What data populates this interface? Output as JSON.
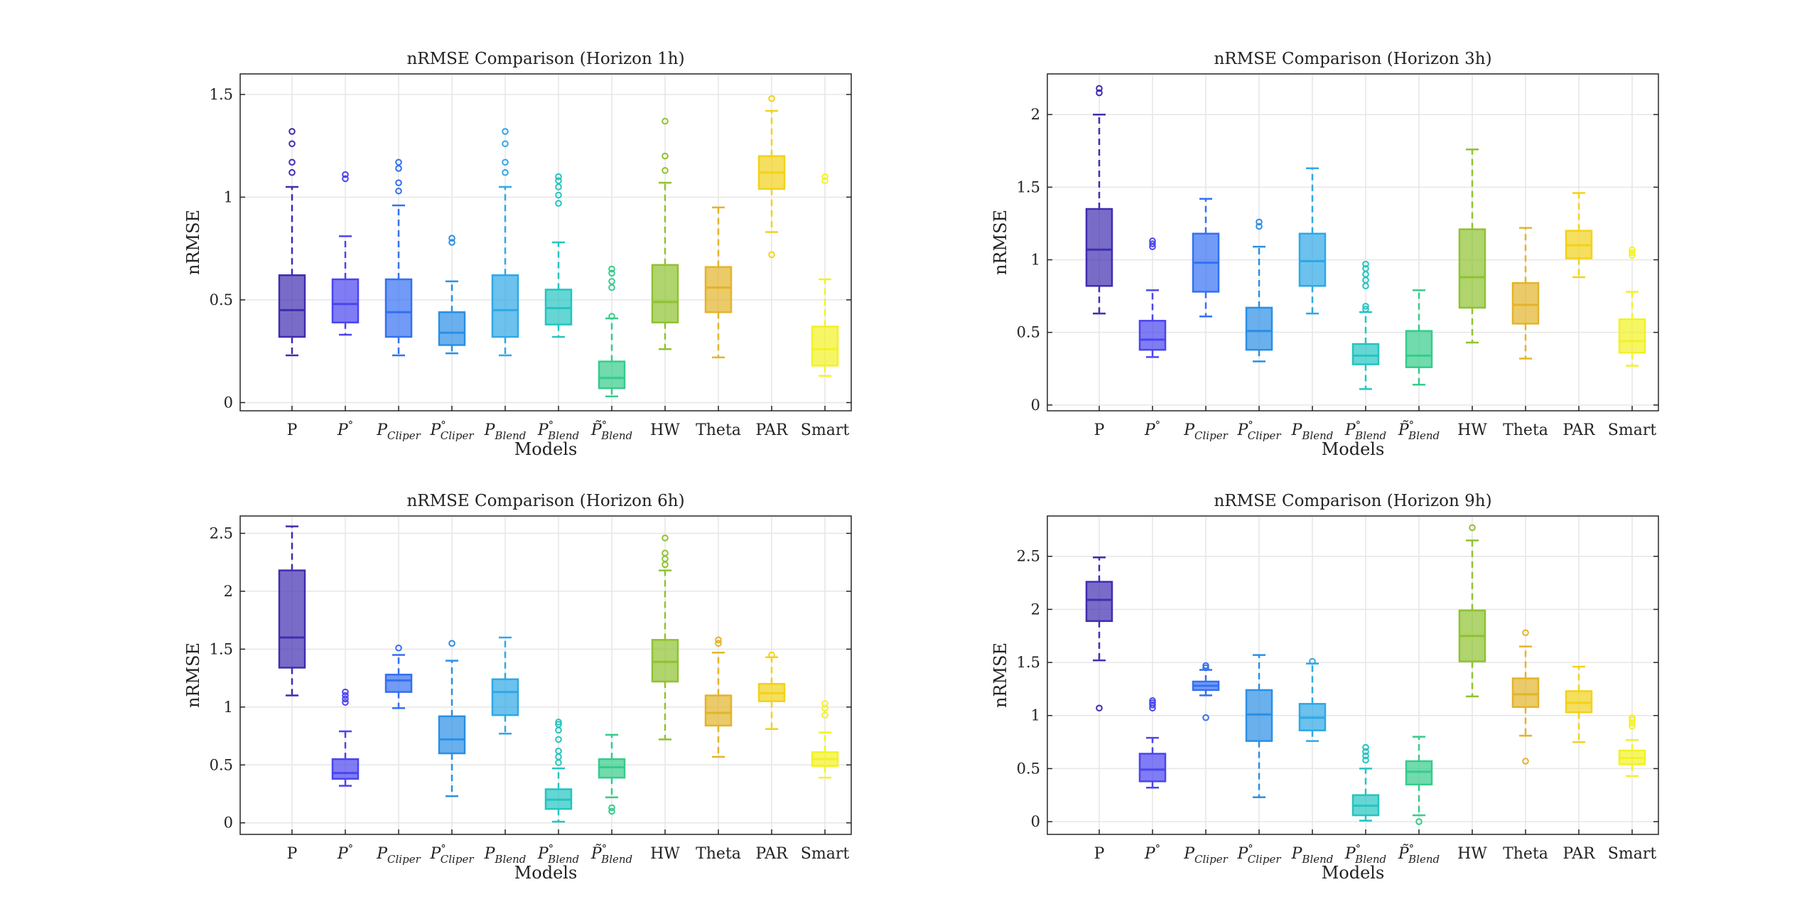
{
  "figure": {
    "categories": [
      "P",
      "P°",
      "P_Cliper",
      "P°_Cliper",
      "P_Blend",
      "P°_Blend",
      "P̃°_Blend",
      "HW",
      "Theta",
      "PAR",
      "Smart"
    ],
    "colors": [
      "#3f2db0",
      "#4a45f0",
      "#3470f2",
      "#2a8fe6",
      "#2ea8e6",
      "#24c4c0",
      "#35cc8a",
      "#8fc230",
      "#e3b42a",
      "#f2d21a",
      "#f2f224"
    ]
  },
  "chart_data": [
    {
      "type": "box",
      "title": "nRMSE Comparison (Horizon 1h)",
      "xlabel": "Models",
      "ylabel": "nRMSE",
      "ylim": [
        -0.04,
        1.6
      ],
      "yticks": [
        0,
        0.5,
        1,
        1.5
      ],
      "ytick_labels": [
        "0",
        "0.5",
        "1",
        "1.5"
      ],
      "grid": true,
      "boxes": [
        {
          "category": "P",
          "whisker_low": 0.23,
          "q1": 0.32,
          "median": 0.45,
          "q3": 0.62,
          "whisker_high": 1.05,
          "outliers": [
            1.12,
            1.17,
            1.26,
            1.32
          ]
        },
        {
          "category": "P°",
          "whisker_low": 0.33,
          "q1": 0.39,
          "median": 0.48,
          "q3": 0.6,
          "whisker_high": 0.81,
          "outliers": [
            1.09,
            1.11
          ]
        },
        {
          "category": "P_Cliper",
          "whisker_low": 0.23,
          "q1": 0.32,
          "median": 0.44,
          "q3": 0.6,
          "whisker_high": 0.96,
          "outliers": [
            1.03,
            1.07,
            1.14,
            1.17
          ]
        },
        {
          "category": "P°_Cliper",
          "whisker_low": 0.24,
          "q1": 0.28,
          "median": 0.34,
          "q3": 0.44,
          "whisker_high": 0.59,
          "outliers": [
            0.78,
            0.8
          ]
        },
        {
          "category": "P_Blend",
          "whisker_low": 0.23,
          "q1": 0.32,
          "median": 0.45,
          "q3": 0.62,
          "whisker_high": 1.05,
          "outliers": [
            1.12,
            1.17,
            1.26,
            1.32
          ]
        },
        {
          "category": "P°_Blend",
          "whisker_low": 0.32,
          "q1": 0.38,
          "median": 0.46,
          "q3": 0.55,
          "whisker_high": 0.78,
          "outliers": [
            0.97,
            1.01,
            1.05,
            1.08,
            1.1
          ]
        },
        {
          "category": "P̃°_Blend",
          "whisker_low": 0.03,
          "q1": 0.07,
          "median": 0.12,
          "q3": 0.2,
          "whisker_high": 0.41,
          "outliers": [
            0.42,
            0.56,
            0.59,
            0.63,
            0.65
          ]
        },
        {
          "category": "HW",
          "whisker_low": 0.26,
          "q1": 0.39,
          "median": 0.49,
          "q3": 0.67,
          "whisker_high": 1.07,
          "outliers": [
            1.13,
            1.2,
            1.37
          ]
        },
        {
          "category": "Theta",
          "whisker_low": 0.22,
          "q1": 0.44,
          "median": 0.56,
          "q3": 0.66,
          "whisker_high": 0.95,
          "outliers": []
        },
        {
          "category": "PAR",
          "whisker_low": 0.83,
          "q1": 1.04,
          "median": 1.12,
          "q3": 1.2,
          "whisker_high": 1.42,
          "outliers": [
            0.72,
            1.48
          ]
        },
        {
          "category": "Smart",
          "whisker_low": 0.13,
          "q1": 0.18,
          "median": 0.26,
          "q3": 0.37,
          "whisker_high": 0.6,
          "outliers": [
            1.08,
            1.1
          ]
        }
      ]
    },
    {
      "type": "box",
      "title": "nRMSE Comparison (Horizon 3h)",
      "xlabel": "Models",
      "ylabel": "nRMSE",
      "ylim": [
        -0.04,
        2.28
      ],
      "yticks": [
        0,
        0.5,
        1,
        1.5,
        2
      ],
      "ytick_labels": [
        "0",
        "0.5",
        "1",
        "1.5",
        "2"
      ],
      "grid": true,
      "boxes": [
        {
          "category": "P",
          "whisker_low": 0.63,
          "q1": 0.82,
          "median": 1.07,
          "q3": 1.35,
          "whisker_high": 2.0,
          "outliers": [
            2.15,
            2.18
          ]
        },
        {
          "category": "P°",
          "whisker_low": 0.33,
          "q1": 0.38,
          "median": 0.45,
          "q3": 0.58,
          "whisker_high": 0.79,
          "outliers": [
            1.09,
            1.11,
            1.13
          ]
        },
        {
          "category": "P_Cliper",
          "whisker_low": 0.61,
          "q1": 0.78,
          "median": 0.98,
          "q3": 1.18,
          "whisker_high": 1.42,
          "outliers": []
        },
        {
          "category": "P°_Cliper",
          "whisker_low": 0.3,
          "q1": 0.38,
          "median": 0.51,
          "q3": 0.67,
          "whisker_high": 1.09,
          "outliers": [
            1.23,
            1.26
          ]
        },
        {
          "category": "P_Blend",
          "whisker_low": 0.63,
          "q1": 0.82,
          "median": 0.99,
          "q3": 1.18,
          "whisker_high": 1.63,
          "outliers": []
        },
        {
          "category": "P°_Blend",
          "whisker_low": 0.11,
          "q1": 0.28,
          "median": 0.34,
          "q3": 0.42,
          "whisker_high": 0.64,
          "outliers": [
            0.66,
            0.68,
            0.82,
            0.86,
            0.9,
            0.94,
            0.97
          ]
        },
        {
          "category": "P̃°_Blend",
          "whisker_low": 0.14,
          "q1": 0.26,
          "median": 0.34,
          "q3": 0.51,
          "whisker_high": 0.79,
          "outliers": []
        },
        {
          "category": "HW",
          "whisker_low": 0.43,
          "q1": 0.67,
          "median": 0.88,
          "q3": 1.21,
          "whisker_high": 1.76,
          "outliers": []
        },
        {
          "category": "Theta",
          "whisker_low": 0.32,
          "q1": 0.56,
          "median": 0.69,
          "q3": 0.84,
          "whisker_high": 1.22,
          "outliers": []
        },
        {
          "category": "PAR",
          "whisker_low": 0.88,
          "q1": 1.01,
          "median": 1.1,
          "q3": 1.2,
          "whisker_high": 1.46,
          "outliers": []
        },
        {
          "category": "Smart",
          "whisker_low": 0.27,
          "q1": 0.36,
          "median": 0.44,
          "q3": 0.59,
          "whisker_high": 0.78,
          "outliers": [
            1.03,
            1.05,
            1.07
          ]
        }
      ]
    },
    {
      "type": "box",
      "title": "nRMSE Comparison (Horizon 6h)",
      "xlabel": "Models",
      "ylabel": "nRMSE",
      "ylim": [
        -0.1,
        2.65
      ],
      "yticks": [
        0,
        0.5,
        1,
        1.5,
        2,
        2.5
      ],
      "ytick_labels": [
        "0",
        "0.5",
        "1",
        "1.5",
        "2",
        "2.5"
      ],
      "grid": true,
      "boxes": [
        {
          "category": "P",
          "whisker_low": 1.1,
          "q1": 1.34,
          "median": 1.6,
          "q3": 2.18,
          "whisker_high": 2.56,
          "outliers": []
        },
        {
          "category": "P°",
          "whisker_low": 0.32,
          "q1": 0.38,
          "median": 0.43,
          "q3": 0.55,
          "whisker_high": 0.79,
          "outliers": [
            1.04,
            1.07,
            1.1,
            1.13
          ]
        },
        {
          "category": "P_Cliper",
          "whisker_low": 0.99,
          "q1": 1.13,
          "median": 1.23,
          "q3": 1.28,
          "whisker_high": 1.45,
          "outliers": [
            1.51
          ]
        },
        {
          "category": "P°_Cliper",
          "whisker_low": 0.23,
          "q1": 0.6,
          "median": 0.72,
          "q3": 0.92,
          "whisker_high": 1.4,
          "outliers": [
            1.55
          ]
        },
        {
          "category": "P_Blend",
          "whisker_low": 0.77,
          "q1": 0.93,
          "median": 1.13,
          "q3": 1.24,
          "whisker_high": 1.6,
          "outliers": []
        },
        {
          "category": "P°_Blend",
          "whisker_low": 0.01,
          "q1": 0.12,
          "median": 0.2,
          "q3": 0.29,
          "whisker_high": 0.47,
          "outliers": [
            0.52,
            0.57,
            0.62,
            0.72,
            0.8,
            0.85,
            0.87
          ]
        },
        {
          "category": "P̃°_Blend",
          "whisker_low": 0.22,
          "q1": 0.39,
          "median": 0.48,
          "q3": 0.55,
          "whisker_high": 0.76,
          "outliers": [
            0.1,
            0.13
          ]
        },
        {
          "category": "HW",
          "whisker_low": 0.72,
          "q1": 1.22,
          "median": 1.39,
          "q3": 1.58,
          "whisker_high": 2.18,
          "outliers": [
            2.23,
            2.28,
            2.33,
            2.46
          ]
        },
        {
          "category": "Theta",
          "whisker_low": 0.57,
          "q1": 0.84,
          "median": 0.95,
          "q3": 1.1,
          "whisker_high": 1.47,
          "outliers": [
            1.55,
            1.58
          ]
        },
        {
          "category": "PAR",
          "whisker_low": 0.81,
          "q1": 1.05,
          "median": 1.12,
          "q3": 1.2,
          "whisker_high": 1.43,
          "outliers": [
            1.45
          ]
        },
        {
          "category": "Smart",
          "whisker_low": 0.39,
          "q1": 0.49,
          "median": 0.55,
          "q3": 0.61,
          "whisker_high": 0.78,
          "outliers": [
            0.93,
            0.99,
            1.03
          ]
        }
      ]
    },
    {
      "type": "box",
      "title": "nRMSE Comparison (Horizon 9h)",
      "xlabel": "Models",
      "ylabel": "nRMSE",
      "ylim": [
        -0.12,
        2.88
      ],
      "yticks": [
        0,
        0.5,
        1,
        1.5,
        2,
        2.5
      ],
      "ytick_labels": [
        "0",
        "0.5",
        "1",
        "1.5",
        "2",
        "2.5"
      ],
      "grid": true,
      "boxes": [
        {
          "category": "P",
          "whisker_low": 1.52,
          "q1": 1.89,
          "median": 2.09,
          "q3": 2.26,
          "whisker_high": 2.49,
          "outliers": [
            1.07
          ]
        },
        {
          "category": "P°",
          "whisker_low": 0.32,
          "q1": 0.38,
          "median": 0.49,
          "q3": 0.64,
          "whisker_high": 0.79,
          "outliers": [
            1.07,
            1.1,
            1.12,
            1.14
          ]
        },
        {
          "category": "P_Cliper",
          "whisker_low": 1.19,
          "q1": 1.24,
          "median": 1.28,
          "q3": 1.32,
          "whisker_high": 1.43,
          "outliers": [
            0.98,
            1.45,
            1.47
          ]
        },
        {
          "category": "P°_Cliper",
          "whisker_low": 0.23,
          "q1": 0.76,
          "median": 1.01,
          "q3": 1.24,
          "whisker_high": 1.57,
          "outliers": []
        },
        {
          "category": "P_Blend",
          "whisker_low": 0.76,
          "q1": 0.86,
          "median": 0.98,
          "q3": 1.11,
          "whisker_high": 1.49,
          "outliers": [
            1.51
          ]
        },
        {
          "category": "P°_Blend",
          "whisker_low": 0.01,
          "q1": 0.06,
          "median": 0.15,
          "q3": 0.25,
          "whisker_high": 0.5,
          "outliers": [
            0.58,
            0.62,
            0.66,
            0.7
          ]
        },
        {
          "category": "P̃°_Blend",
          "whisker_low": 0.06,
          "q1": 0.35,
          "median": 0.47,
          "q3": 0.57,
          "whisker_high": 0.8,
          "outliers": [
            0.0
          ]
        },
        {
          "category": "HW",
          "whisker_low": 1.18,
          "q1": 1.51,
          "median": 1.75,
          "q3": 1.99,
          "whisker_high": 2.65,
          "outliers": [
            2.77
          ]
        },
        {
          "category": "Theta",
          "whisker_low": 0.81,
          "q1": 1.08,
          "median": 1.2,
          "q3": 1.35,
          "whisker_high": 1.65,
          "outliers": [
            0.57,
            1.78
          ]
        },
        {
          "category": "PAR",
          "whisker_low": 0.75,
          "q1": 1.03,
          "median": 1.12,
          "q3": 1.23,
          "whisker_high": 1.46,
          "outliers": []
        },
        {
          "category": "Smart",
          "whisker_low": 0.43,
          "q1": 0.54,
          "median": 0.6,
          "q3": 0.67,
          "whisker_high": 0.77,
          "outliers": [
            0.9,
            0.93,
            0.96,
            0.98
          ]
        }
      ]
    }
  ]
}
